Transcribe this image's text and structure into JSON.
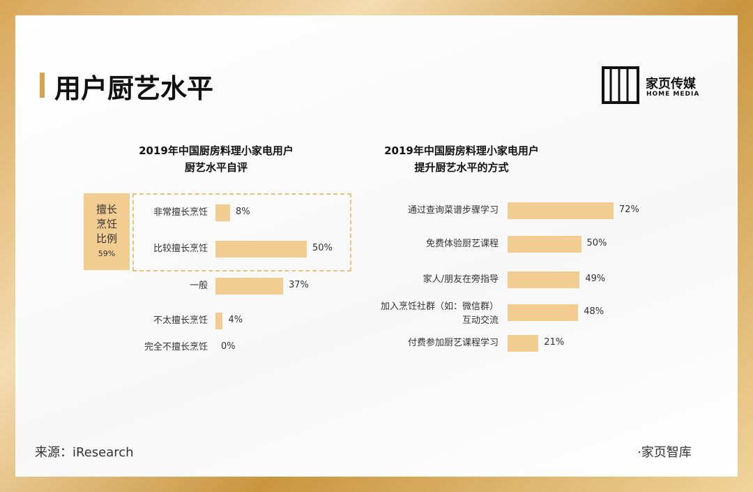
{
  "header": {
    "title": "用户厨艺水平",
    "logo_name": "家页传媒",
    "logo_sub": "HOME MEDIA"
  },
  "footer": {
    "source": "来源：iResearch",
    "brand": "·家页智库"
  },
  "chart_data": [
    {
      "type": "bar",
      "orientation": "horizontal",
      "title": "2019年中国厨房料理小家电用户\n厨艺水平自评",
      "categories": [
        "非常擅长烹饪",
        "比较擅长烹饪",
        "一般",
        "不太擅长烹饪",
        "完全不擅长烹饪"
      ],
      "values": [
        8,
        50,
        37,
        4,
        0
      ],
      "value_labels": [
        "8%",
        "50%",
        "37%",
        "4%",
        "0%"
      ],
      "color": "#f2cd92",
      "annotation": {
        "text": "擅长\n烹饪\n比例",
        "value_label": "59%"
      }
    },
    {
      "type": "bar",
      "orientation": "horizontal",
      "title": "2019年中国厨房料理小家电用户\n提升厨艺水平的方式",
      "categories": [
        "通过查询菜谱步骤学习",
        "免费体验厨艺课程",
        "家人/朋友在旁指导",
        "加入烹饪社群（如：微信群）\n互动交流",
        "付费参加厨艺课程学习"
      ],
      "values": [
        72,
        50,
        49,
        48,
        21
      ],
      "value_labels": [
        "72%",
        "50%",
        "49%",
        "48%",
        "21%"
      ],
      "color": "#f2cd92"
    }
  ]
}
